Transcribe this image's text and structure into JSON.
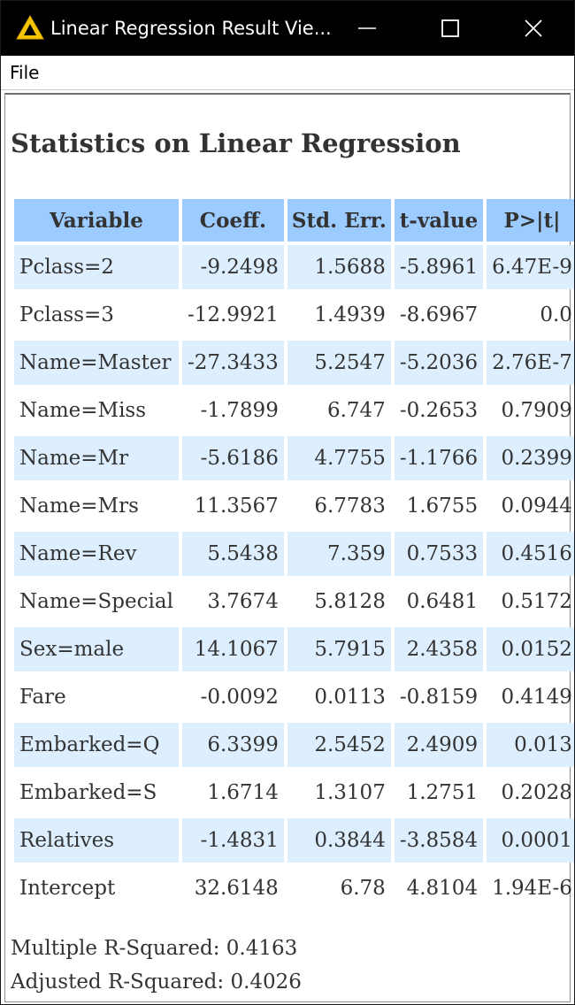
{
  "window": {
    "title": "Linear Regression Result Vie...",
    "icon": "knime-triangle-icon",
    "controls": [
      "minimize-icon",
      "maximize-icon",
      "close-icon"
    ]
  },
  "menu": {
    "file_label": "File"
  },
  "report": {
    "title": "Statistics on Linear Regression",
    "columns": [
      "Variable",
      "Coeff.",
      "Std. Err.",
      "t-value",
      "P>|t|"
    ],
    "rows": [
      [
        "Pclass=2",
        "-9.2498",
        "1.5688",
        "-5.8961",
        "6.47E-9"
      ],
      [
        "Pclass=3",
        "-12.9921",
        "1.4939",
        "-8.6967",
        "0.0"
      ],
      [
        "Name=Master",
        "-27.3433",
        "5.2547",
        "-5.2036",
        "2.76E-7"
      ],
      [
        "Name=Miss",
        "-1.7899",
        "6.747",
        "-0.2653",
        "0.7909"
      ],
      [
        "Name=Mr",
        "-5.6186",
        "4.7755",
        "-1.1766",
        "0.2399"
      ],
      [
        "Name=Mrs",
        "11.3567",
        "6.7783",
        "1.6755",
        "0.0944"
      ],
      [
        "Name=Rev",
        "5.5438",
        "7.359",
        "0.7533",
        "0.4516"
      ],
      [
        "Name=Special",
        "3.7674",
        "5.8128",
        "0.6481",
        "0.5172"
      ],
      [
        "Sex=male",
        "14.1067",
        "5.7915",
        "2.4358",
        "0.0152"
      ],
      [
        "Fare",
        "-0.0092",
        "0.0113",
        "-0.8159",
        "0.4149"
      ],
      [
        "Embarked=Q",
        "6.3399",
        "2.5452",
        "2.4909",
        "0.013"
      ],
      [
        "Embarked=S",
        "1.6714",
        "1.3107",
        "1.2751",
        "0.2028"
      ],
      [
        "Relatives",
        "-1.4831",
        "0.3844",
        "-3.8584",
        "0.0001"
      ],
      [
        "Intercept",
        "32.6148",
        "6.78",
        "4.8104",
        "1.94E-6"
      ]
    ],
    "multiple_r_squared": "Multiple R-Squared: 0.4163",
    "adjusted_r_squared": "Adjusted R-Squared: 0.4026"
  },
  "colors": {
    "title_bar": "#000000",
    "header_bg": "#9ccbff",
    "stripe_bg": "#ddeeff",
    "text": "#333333",
    "icon_yellow": "#f5c400"
  }
}
